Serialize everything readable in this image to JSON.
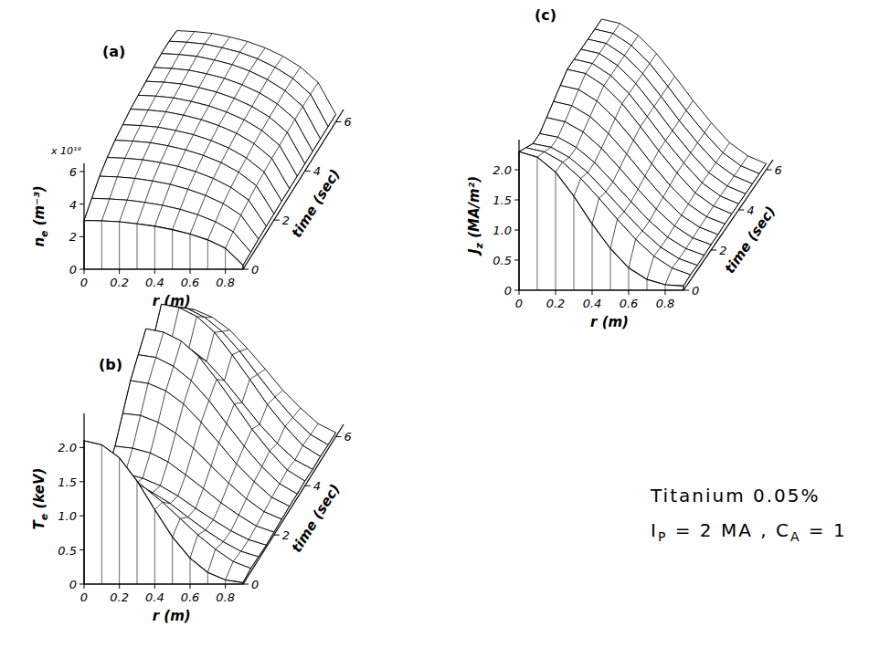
{
  "chart_data": [
    {
      "type": "surface",
      "panel_label": "(a)",
      "x_label": "r (m)",
      "y_label": "time (sec)",
      "z_label": {
        "symbol": "n",
        "subscript": "e",
        "unit": " (m⁻³)"
      },
      "z_multiplier": "x 10¹⁹",
      "x": [
        0,
        0.1,
        0.2,
        0.3,
        0.4,
        0.5,
        0.6,
        0.7,
        0.8,
        0.9
      ],
      "y": [
        0,
        0.5,
        1,
        1.5,
        2,
        2.5,
        3,
        3.5,
        4,
        4.5,
        5,
        5.5,
        6
      ],
      "z": [
        [
          3.0,
          2.97,
          2.91,
          2.79,
          2.64,
          2.43,
          2.16,
          1.8,
          1.29,
          0.24
        ],
        [
          3.6,
          3.56,
          3.49,
          3.35,
          3.17,
          2.92,
          2.59,
          2.16,
          1.55,
          0.29
        ],
        [
          4.2,
          4.16,
          4.07,
          3.91,
          3.7,
          3.4,
          3.02,
          2.52,
          1.81,
          0.34
        ],
        [
          4.6,
          4.55,
          4.46,
          4.28,
          4.05,
          3.73,
          3.31,
          2.76,
          1.98,
          0.37
        ],
        [
          4.9,
          4.85,
          4.75,
          4.56,
          4.31,
          3.97,
          3.53,
          2.94,
          2.11,
          0.39
        ],
        [
          5.1,
          5.05,
          4.95,
          4.74,
          4.49,
          4.13,
          3.67,
          3.06,
          2.19,
          0.41
        ],
        [
          5.3,
          5.25,
          5.14,
          4.93,
          4.66,
          4.29,
          3.82,
          3.18,
          2.28,
          0.42
        ],
        [
          5.4,
          5.35,
          5.24,
          5.02,
          4.75,
          4.37,
          3.89,
          3.24,
          2.32,
          0.43
        ],
        [
          5.5,
          5.45,
          5.34,
          5.12,
          4.84,
          4.46,
          3.96,
          3.3,
          2.37,
          0.44
        ],
        [
          5.6,
          5.54,
          5.43,
          5.21,
          4.93,
          4.54,
          4.03,
          3.36,
          2.41,
          0.45
        ],
        [
          5.7,
          5.64,
          5.53,
          5.3,
          5.02,
          4.62,
          4.1,
          3.42,
          2.45,
          0.46
        ],
        [
          5.7,
          5.64,
          5.53,
          5.3,
          5.02,
          4.62,
          4.1,
          3.42,
          2.45,
          0.46
        ],
        [
          5.6,
          5.54,
          5.43,
          5.21,
          4.93,
          4.54,
          4.03,
          3.36,
          2.41,
          0.45
        ]
      ],
      "xlim": [
        0,
        0.9
      ],
      "xticks": [
        0,
        0.2,
        0.4,
        0.6,
        0.8
      ],
      "ylim": [
        0,
        6.5
      ],
      "yticks": [
        0,
        2,
        4,
        6
      ],
      "zlim": [
        0,
        6.5
      ],
      "zticks": [
        0,
        2,
        4,
        6
      ]
    },
    {
      "type": "surface",
      "panel_label": "(b)",
      "x_label": "r (m)",
      "y_label": "time (sec)",
      "z_label": {
        "symbol": "T",
        "subscript": "e",
        "unit": " (keV)"
      },
      "x": [
        0,
        0.1,
        0.2,
        0.3,
        0.4,
        0.5,
        0.6,
        0.7,
        0.8,
        0.9
      ],
      "y": [
        0,
        0.5,
        1,
        1.5,
        2,
        2.5,
        3,
        3.5,
        4,
        4.5,
        5,
        5.5,
        6
      ],
      "z": [
        [
          2.1,
          2.04,
          1.85,
          1.51,
          1.09,
          0.69,
          0.38,
          0.17,
          0.06,
          0.02
        ],
        [
          1.5,
          1.47,
          1.38,
          1.23,
          1.02,
          0.78,
          0.54,
          0.33,
          0.15,
          0.05
        ],
        [
          1.2,
          1.18,
          1.1,
          0.98,
          0.82,
          0.62,
          0.43,
          0.26,
          0.12,
          0.04
        ],
        [
          1.1,
          1.08,
          1.01,
          0.9,
          0.75,
          0.57,
          0.4,
          0.24,
          0.11,
          0.03
        ],
        [
          1.3,
          1.27,
          1.2,
          1.07,
          0.88,
          0.68,
          0.47,
          0.29,
          0.13,
          0.04
        ],
        [
          1.6,
          1.57,
          1.47,
          1.31,
          1.09,
          0.83,
          0.58,
          0.35,
          0.16,
          0.05
        ],
        [
          1.9,
          1.86,
          1.75,
          1.56,
          1.29,
          0.99,
          0.68,
          0.42,
          0.19,
          0.06
        ],
        [
          2.1,
          2.06,
          1.93,
          1.72,
          1.43,
          1.09,
          0.76,
          0.46,
          0.21,
          0.06
        ],
        [
          2.3,
          2.25,
          2.12,
          1.89,
          1.56,
          1.2,
          0.83,
          0.51,
          0.23,
          0.07
        ],
        [
          2.0,
          1.96,
          1.84,
          1.64,
          1.36,
          1.04,
          0.72,
          0.44,
          0.2,
          0.06
        ],
        [
          2.3,
          2.25,
          2.12,
          1.89,
          1.56,
          1.2,
          0.83,
          0.51,
          0.23,
          0.07
        ],
        [
          2.1,
          2.06,
          1.93,
          1.72,
          1.43,
          1.09,
          0.76,
          0.46,
          0.21,
          0.06
        ],
        [
          1.9,
          1.86,
          1.75,
          1.56,
          1.29,
          0.99,
          0.68,
          0.42,
          0.19,
          0.06
        ]
      ],
      "xlim": [
        0,
        0.9
      ],
      "xticks": [
        0,
        0.2,
        0.4,
        0.6,
        0.8
      ],
      "ylim": [
        0,
        6.5
      ],
      "yticks": [
        0,
        2,
        4,
        6
      ],
      "zlim": [
        0,
        2.5
      ],
      "zticks": [
        0,
        0.5,
        {
          "value": 1,
          "label": "1.0"
        },
        1.5,
        {
          "value": 2,
          "label": "2.0"
        }
      ]
    },
    {
      "type": "surface",
      "panel_label": "(c)",
      "x_label": "r (m)",
      "y_label": "time (sec)",
      "z_label": {
        "symbol": "J",
        "subscript": "z",
        "unit": " (MA/m²)"
      },
      "x": [
        0,
        0.1,
        0.2,
        0.3,
        0.4,
        0.5,
        0.6,
        0.7,
        0.8,
        0.9
      ],
      "y": [
        0,
        0.5,
        1,
        1.5,
        2,
        2.5,
        3,
        3.5,
        4,
        4.5,
        5,
        5.5,
        6
      ],
      "z": [
        [
          2.3,
          2.21,
          1.96,
          1.56,
          1.1,
          0.69,
          0.37,
          0.18,
          0.09,
          0.07
        ],
        [
          2.2,
          2.13,
          1.96,
          1.69,
          1.36,
          1.01,
          0.68,
          0.4,
          0.2,
          0.09
        ],
        [
          2.1,
          2.04,
          1.87,
          1.62,
          1.3,
          0.97,
          0.65,
          0.38,
          0.19,
          0.08
        ],
        [
          2.1,
          2.04,
          1.87,
          1.62,
          1.3,
          0.97,
          0.65,
          0.38,
          0.19,
          0.08
        ],
        [
          2.2,
          2.13,
          1.96,
          1.69,
          1.36,
          1.01,
          0.68,
          0.4,
          0.2,
          0.09
        ],
        [
          2.3,
          2.23,
          2.05,
          1.77,
          1.43,
          1.06,
          0.71,
          0.41,
          0.21,
          0.09
        ],
        [
          2.4,
          2.33,
          2.14,
          1.85,
          1.49,
          1.1,
          0.74,
          0.43,
          0.22,
          0.1
        ],
        [
          2.5,
          2.43,
          2.23,
          1.93,
          1.55,
          1.15,
          0.78,
          0.45,
          0.23,
          0.1
        ],
        [
          2.5,
          2.43,
          2.23,
          1.93,
          1.55,
          1.15,
          0.78,
          0.45,
          0.23,
          0.1
        ],
        [
          2.5,
          2.43,
          2.23,
          1.93,
          1.55,
          1.15,
          0.78,
          0.45,
          0.23,
          0.1
        ],
        [
          2.5,
          2.43,
          2.23,
          1.93,
          1.55,
          1.15,
          0.78,
          0.45,
          0.23,
          0.1
        ],
        [
          2.5,
          2.43,
          2.23,
          1.93,
          1.55,
          1.15,
          0.78,
          0.45,
          0.23,
          0.1
        ],
        [
          2.5,
          2.43,
          2.23,
          1.93,
          1.55,
          1.15,
          0.78,
          0.45,
          0.23,
          0.1
        ]
      ],
      "xlim": [
        0,
        0.9
      ],
      "xticks": [
        0,
        0.2,
        0.4,
        0.6,
        0.8
      ],
      "ylim": [
        0,
        6.5
      ],
      "yticks": [
        0,
        2,
        4,
        6
      ],
      "zlim": [
        0,
        2.5
      ],
      "zticks": [
        0,
        0.5,
        {
          "value": 1,
          "label": "1.0"
        },
        1.5,
        {
          "value": 2,
          "label": "2.0"
        }
      ]
    }
  ],
  "annotation": {
    "lines": [
      [
        {
          "text": "Titanium 0.05%"
        }
      ],
      [
        {
          "text": "I"
        },
        {
          "text": "P",
          "sub": true
        },
        {
          "text": " = 2 MA , C"
        },
        {
          "text": "A",
          "sub": true
        },
        {
          "text": " = 1"
        }
      ]
    ]
  }
}
